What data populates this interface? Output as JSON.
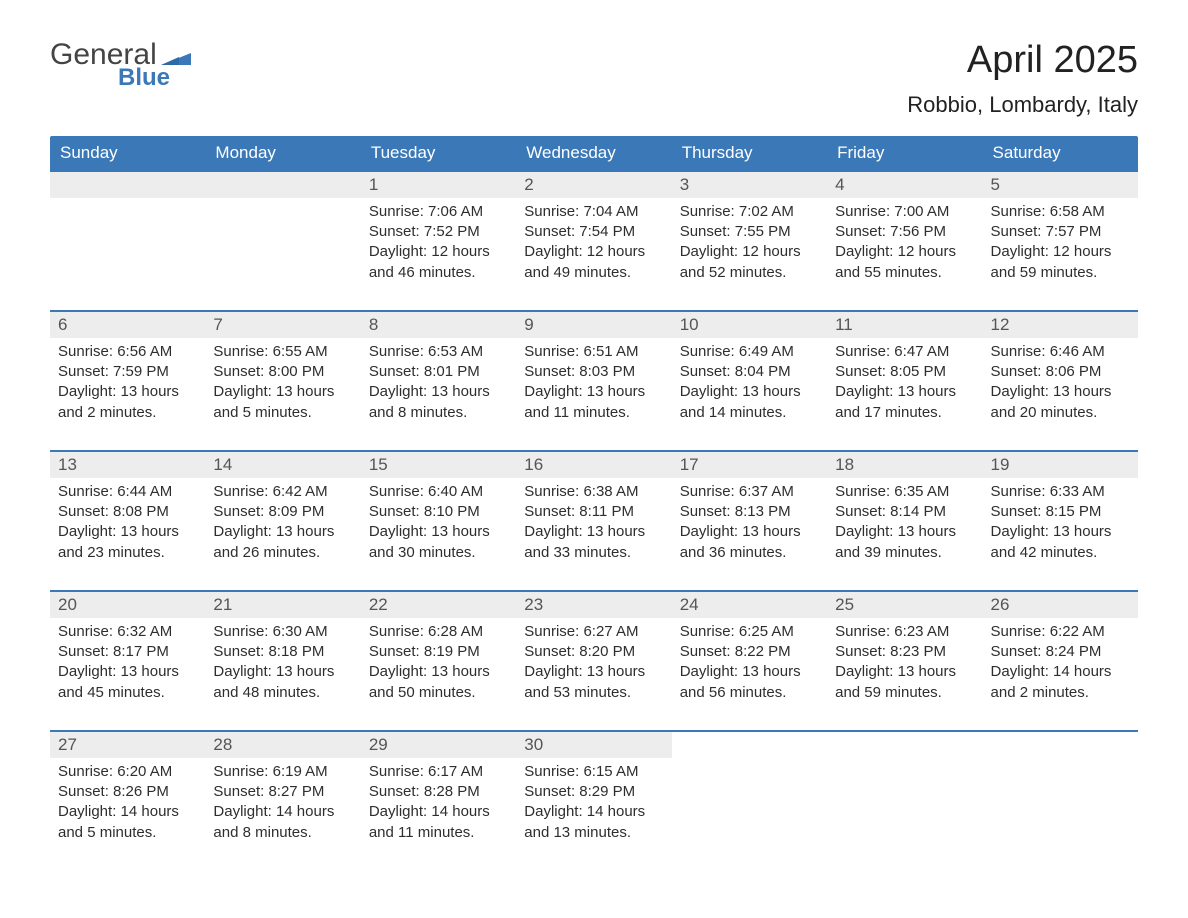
{
  "logo": {
    "word1": "General",
    "word2": "Blue"
  },
  "title": "April 2025",
  "subtitle": "Robbio, Lombardy, Italy",
  "colors": {
    "brand_blue": "#3a78b8",
    "gray_band": "#ededed",
    "text": "#333333",
    "white": "#ffffff"
  },
  "fonts": {
    "family": "Segoe UI, Arial, sans-serif",
    "title_size_pt": 28,
    "subtitle_size_pt": 16,
    "header_size_pt": 13,
    "body_size_pt": 11
  },
  "weekday_headers": [
    "Sunday",
    "Monday",
    "Tuesday",
    "Wednesday",
    "Thursday",
    "Friday",
    "Saturday"
  ],
  "weeks": [
    [
      null,
      null,
      {
        "daynum": "1",
        "sunrise": "Sunrise: 7:06 AM",
        "sunset": "Sunset: 7:52 PM",
        "daylight1": "Daylight: 12 hours",
        "daylight2": "and 46 minutes."
      },
      {
        "daynum": "2",
        "sunrise": "Sunrise: 7:04 AM",
        "sunset": "Sunset: 7:54 PM",
        "daylight1": "Daylight: 12 hours",
        "daylight2": "and 49 minutes."
      },
      {
        "daynum": "3",
        "sunrise": "Sunrise: 7:02 AM",
        "sunset": "Sunset: 7:55 PM",
        "daylight1": "Daylight: 12 hours",
        "daylight2": "and 52 minutes."
      },
      {
        "daynum": "4",
        "sunrise": "Sunrise: 7:00 AM",
        "sunset": "Sunset: 7:56 PM",
        "daylight1": "Daylight: 12 hours",
        "daylight2": "and 55 minutes."
      },
      {
        "daynum": "5",
        "sunrise": "Sunrise: 6:58 AM",
        "sunset": "Sunset: 7:57 PM",
        "daylight1": "Daylight: 12 hours",
        "daylight2": "and 59 minutes."
      }
    ],
    [
      {
        "daynum": "6",
        "sunrise": "Sunrise: 6:56 AM",
        "sunset": "Sunset: 7:59 PM",
        "daylight1": "Daylight: 13 hours",
        "daylight2": "and 2 minutes."
      },
      {
        "daynum": "7",
        "sunrise": "Sunrise: 6:55 AM",
        "sunset": "Sunset: 8:00 PM",
        "daylight1": "Daylight: 13 hours",
        "daylight2": "and 5 minutes."
      },
      {
        "daynum": "8",
        "sunrise": "Sunrise: 6:53 AM",
        "sunset": "Sunset: 8:01 PM",
        "daylight1": "Daylight: 13 hours",
        "daylight2": "and 8 minutes."
      },
      {
        "daynum": "9",
        "sunrise": "Sunrise: 6:51 AM",
        "sunset": "Sunset: 8:03 PM",
        "daylight1": "Daylight: 13 hours",
        "daylight2": "and 11 minutes."
      },
      {
        "daynum": "10",
        "sunrise": "Sunrise: 6:49 AM",
        "sunset": "Sunset: 8:04 PM",
        "daylight1": "Daylight: 13 hours",
        "daylight2": "and 14 minutes."
      },
      {
        "daynum": "11",
        "sunrise": "Sunrise: 6:47 AM",
        "sunset": "Sunset: 8:05 PM",
        "daylight1": "Daylight: 13 hours",
        "daylight2": "and 17 minutes."
      },
      {
        "daynum": "12",
        "sunrise": "Sunrise: 6:46 AM",
        "sunset": "Sunset: 8:06 PM",
        "daylight1": "Daylight: 13 hours",
        "daylight2": "and 20 minutes."
      }
    ],
    [
      {
        "daynum": "13",
        "sunrise": "Sunrise: 6:44 AM",
        "sunset": "Sunset: 8:08 PM",
        "daylight1": "Daylight: 13 hours",
        "daylight2": "and 23 minutes."
      },
      {
        "daynum": "14",
        "sunrise": "Sunrise: 6:42 AM",
        "sunset": "Sunset: 8:09 PM",
        "daylight1": "Daylight: 13 hours",
        "daylight2": "and 26 minutes."
      },
      {
        "daynum": "15",
        "sunrise": "Sunrise: 6:40 AM",
        "sunset": "Sunset: 8:10 PM",
        "daylight1": "Daylight: 13 hours",
        "daylight2": "and 30 minutes."
      },
      {
        "daynum": "16",
        "sunrise": "Sunrise: 6:38 AM",
        "sunset": "Sunset: 8:11 PM",
        "daylight1": "Daylight: 13 hours",
        "daylight2": "and 33 minutes."
      },
      {
        "daynum": "17",
        "sunrise": "Sunrise: 6:37 AM",
        "sunset": "Sunset: 8:13 PM",
        "daylight1": "Daylight: 13 hours",
        "daylight2": "and 36 minutes."
      },
      {
        "daynum": "18",
        "sunrise": "Sunrise: 6:35 AM",
        "sunset": "Sunset: 8:14 PM",
        "daylight1": "Daylight: 13 hours",
        "daylight2": "and 39 minutes."
      },
      {
        "daynum": "19",
        "sunrise": "Sunrise: 6:33 AM",
        "sunset": "Sunset: 8:15 PM",
        "daylight1": "Daylight: 13 hours",
        "daylight2": "and 42 minutes."
      }
    ],
    [
      {
        "daynum": "20",
        "sunrise": "Sunrise: 6:32 AM",
        "sunset": "Sunset: 8:17 PM",
        "daylight1": "Daylight: 13 hours",
        "daylight2": "and 45 minutes."
      },
      {
        "daynum": "21",
        "sunrise": "Sunrise: 6:30 AM",
        "sunset": "Sunset: 8:18 PM",
        "daylight1": "Daylight: 13 hours",
        "daylight2": "and 48 minutes."
      },
      {
        "daynum": "22",
        "sunrise": "Sunrise: 6:28 AM",
        "sunset": "Sunset: 8:19 PM",
        "daylight1": "Daylight: 13 hours",
        "daylight2": "and 50 minutes."
      },
      {
        "daynum": "23",
        "sunrise": "Sunrise: 6:27 AM",
        "sunset": "Sunset: 8:20 PM",
        "daylight1": "Daylight: 13 hours",
        "daylight2": "and 53 minutes."
      },
      {
        "daynum": "24",
        "sunrise": "Sunrise: 6:25 AM",
        "sunset": "Sunset: 8:22 PM",
        "daylight1": "Daylight: 13 hours",
        "daylight2": "and 56 minutes."
      },
      {
        "daynum": "25",
        "sunrise": "Sunrise: 6:23 AM",
        "sunset": "Sunset: 8:23 PM",
        "daylight1": "Daylight: 13 hours",
        "daylight2": "and 59 minutes."
      },
      {
        "daynum": "26",
        "sunrise": "Sunrise: 6:22 AM",
        "sunset": "Sunset: 8:24 PM",
        "daylight1": "Daylight: 14 hours",
        "daylight2": "and 2 minutes."
      }
    ],
    [
      {
        "daynum": "27",
        "sunrise": "Sunrise: 6:20 AM",
        "sunset": "Sunset: 8:26 PM",
        "daylight1": "Daylight: 14 hours",
        "daylight2": "and 5 minutes."
      },
      {
        "daynum": "28",
        "sunrise": "Sunrise: 6:19 AM",
        "sunset": "Sunset: 8:27 PM",
        "daylight1": "Daylight: 14 hours",
        "daylight2": "and 8 minutes."
      },
      {
        "daynum": "29",
        "sunrise": "Sunrise: 6:17 AM",
        "sunset": "Sunset: 8:28 PM",
        "daylight1": "Daylight: 14 hours",
        "daylight2": "and 11 minutes."
      },
      {
        "daynum": "30",
        "sunrise": "Sunrise: 6:15 AM",
        "sunset": "Sunset: 8:29 PM",
        "daylight1": "Daylight: 14 hours",
        "daylight2": "and 13 minutes."
      },
      null,
      null,
      null
    ]
  ]
}
